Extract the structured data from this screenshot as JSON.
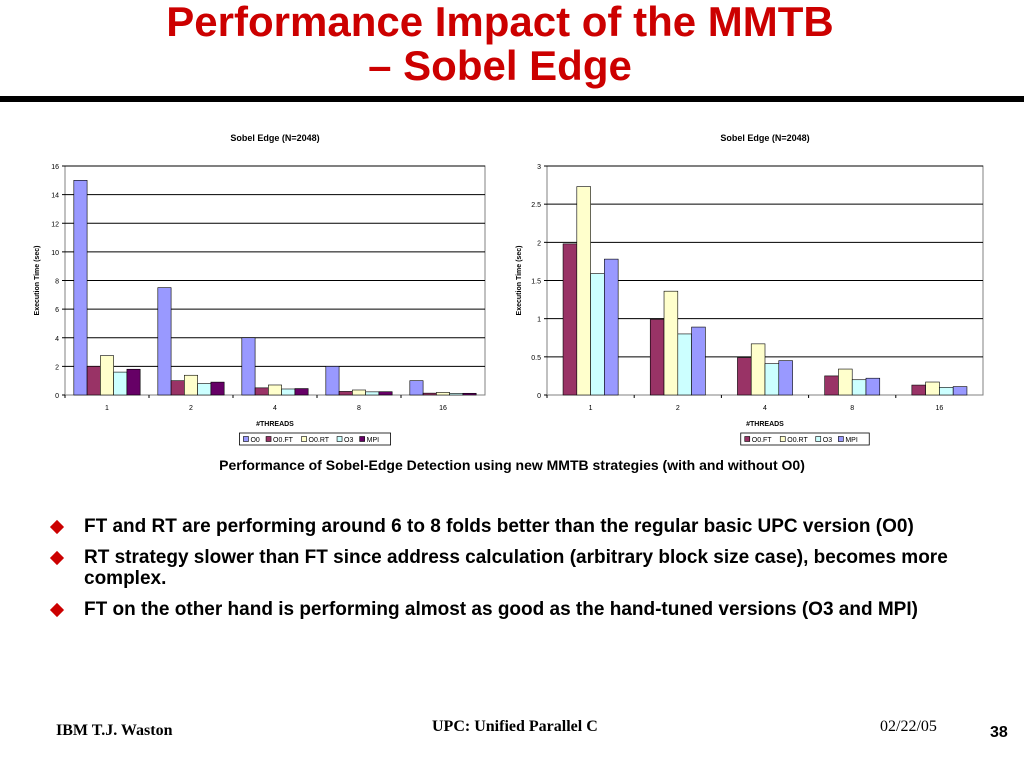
{
  "slide": {
    "title_line1": "Performance Impact of the MMTB",
    "title_line2": "– Sobel Edge",
    "caption": "Performance of Sobel-Edge Detection using new MMTB strategies (with and without O0)",
    "bullets": [
      "FT and RT are performing around 6 to 8 folds better than the regular basic UPC version (O0)",
      "RT strategy slower than FT since address calculation (arbitrary block size case), becomes more complex.",
      "FT on the other hand is performing almost as good as the hand-tuned versions (O3 and MPI)"
    ],
    "footer": {
      "left": "IBM T.J. Waston",
      "center": "UPC: Unified Parallel C",
      "date": "02/22/05",
      "page": "38"
    },
    "accent_color": "#cc0000"
  },
  "chart_data": [
    {
      "type": "bar",
      "title": "Sobel Edge (N=2048)",
      "xlabel": "#THREADS",
      "ylabel": "Execution Time (sec)",
      "categories": [
        "1",
        "2",
        "4",
        "8",
        "16"
      ],
      "ylim": [
        0,
        16
      ],
      "yticks": [
        "0",
        "2",
        "4",
        "6",
        "8",
        "10",
        "12",
        "14",
        "16"
      ],
      "grid": true,
      "legend_position": "bottom",
      "series": [
        {
          "name": "O0",
          "color": "#9999ff",
          "values": [
            15.0,
            7.5,
            4.0,
            2.0,
            1.0
          ]
        },
        {
          "name": "O0.FT",
          "color": "#993366",
          "values": [
            2.0,
            1.0,
            0.5,
            0.25,
            0.13
          ]
        },
        {
          "name": "O0.RT",
          "color": "#ffffcc",
          "values": [
            2.75,
            1.38,
            0.7,
            0.35,
            0.18
          ]
        },
        {
          "name": "O3",
          "color": "#ccffff",
          "values": [
            1.6,
            0.8,
            0.42,
            0.22,
            0.11
          ]
        },
        {
          "name": "MPI",
          "color": "#660066",
          "values": [
            1.8,
            0.9,
            0.45,
            0.23,
            0.12
          ]
        }
      ]
    },
    {
      "type": "bar",
      "title": "Sobel Edge (N=2048)",
      "xlabel": "#THREADS",
      "ylabel": "Execution Time (sec)",
      "categories": [
        "1",
        "2",
        "4",
        "8",
        "16"
      ],
      "ylim": [
        0,
        3
      ],
      "yticks": [
        "0",
        "0.5",
        "1",
        "1.5",
        "2",
        "2.5",
        "3"
      ],
      "grid": true,
      "legend_position": "bottom",
      "series": [
        {
          "name": "O0.FT",
          "color": "#993366",
          "values": [
            1.98,
            0.99,
            0.49,
            0.25,
            0.13
          ]
        },
        {
          "name": "O0.RT",
          "color": "#ffffcc",
          "values": [
            2.73,
            1.36,
            0.67,
            0.34,
            0.17
          ]
        },
        {
          "name": "O3",
          "color": "#ccffff",
          "values": [
            1.59,
            0.8,
            0.41,
            0.2,
            0.1
          ]
        },
        {
          "name": "MPI",
          "color": "#9999ff",
          "values": [
            1.78,
            0.89,
            0.45,
            0.22,
            0.11
          ]
        }
      ]
    }
  ]
}
